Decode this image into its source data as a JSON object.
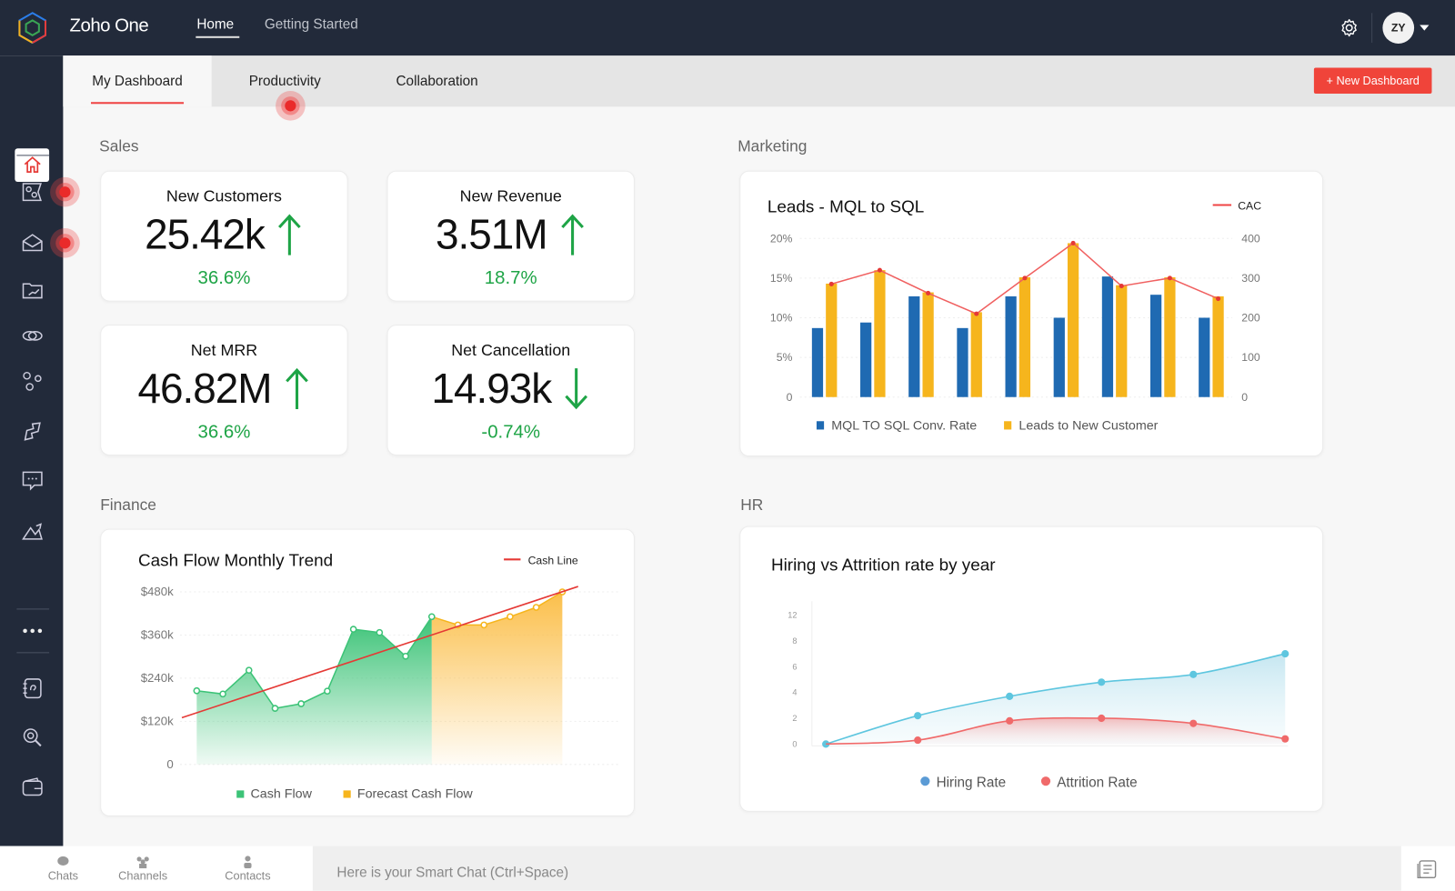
{
  "app": {
    "title": "Zoho One",
    "user_initials": "ZY"
  },
  "topnav": {
    "items": [
      {
        "label": "Home",
        "active": true
      },
      {
        "label": "Getting Started",
        "active": false
      }
    ]
  },
  "tabs": [
    {
      "label": "My Dashboard",
      "active": true
    },
    {
      "label": "Productivity"
    },
    {
      "label": "Collaboration"
    }
  ],
  "new_dashboard_label": "+ New Dashboard",
  "colors": {
    "accent": "#f0443a",
    "positive": "#1ea446",
    "navy": "#222a3a",
    "blue_bar": "#1f6ab2",
    "yellow_bar": "#f6b51d",
    "green_area": "#3cc377",
    "hiring": "#5ec6df",
    "attrition": "#f06a6a"
  },
  "sidebar": {
    "items": [
      "home-icon",
      "reports-icon",
      "mail-icon",
      "folder-chart-icon",
      "link-icon",
      "workflow-icon",
      "sign-icon",
      "chat-icon",
      "analytics-icon",
      "more-icon",
      "notebook-icon",
      "search-icon",
      "wallet-icon"
    ]
  },
  "sections": {
    "sales": "Sales",
    "marketing": "Marketing",
    "finance": "Finance",
    "hr": "HR"
  },
  "kpis": [
    {
      "title": "New Customers",
      "value": "25.42k",
      "change": "36.6%",
      "trend": "up"
    },
    {
      "title": "New Revenue",
      "value": "3.51M",
      "change": "18.7%",
      "trend": "up"
    },
    {
      "title": "Net MRR",
      "value": "46.82M",
      "change": "36.6%",
      "trend": "up"
    },
    {
      "title": "Net Cancellation",
      "value": "14.93k",
      "change": "-0.74%",
      "trend": "down"
    }
  ],
  "chart_data": [
    {
      "type": "bar",
      "title": "Leads - MQL to SQL",
      "y_left_ticks": [
        "0",
        "5%",
        "10%",
        "15%",
        "20%"
      ],
      "y_left_range": [
        0,
        20
      ],
      "y_right_ticks": [
        "0",
        "100",
        "200",
        "300",
        "400"
      ],
      "y_right_range": [
        0,
        400
      ],
      "grid": true,
      "legend": "bottom",
      "series": [
        {
          "name": "MQL TO SQL Conv. Rate",
          "axis": "left",
          "kind": "bar",
          "values": [
            8.7,
            9.4,
            12.7,
            8.7,
            12.7,
            10,
            15.2,
            12.9,
            10
          ]
        },
        {
          "name": "Leads to New Customer",
          "axis": "left",
          "kind": "bar",
          "values": [
            14.3,
            16,
            13.2,
            10.7,
            15.1,
            19.4,
            14.1,
            15.1,
            12.7
          ]
        },
        {
          "name": "CAC",
          "axis": "right",
          "kind": "line",
          "values": [
            285,
            320,
            262,
            210,
            300,
            388,
            280,
            300,
            248
          ]
        }
      ]
    },
    {
      "type": "area",
      "title": "Cash Flow Monthly Trend",
      "y_ticks": [
        "0",
        "$120k",
        "$240k",
        "$360k",
        "$480k"
      ],
      "y_range": [
        0,
        480
      ],
      "grid": true,
      "legend": "bottom",
      "series": [
        {
          "name": "Cash Flow",
          "values": [
            205,
            196,
            262,
            156,
            169,
            204,
            376,
            367,
            301,
            411
          ]
        },
        {
          "name": "Forecast Cash Flow",
          "values": [
            411,
            388,
            388,
            411,
            437,
            480
          ]
        },
        {
          "name": "Cash Line",
          "kind": "trend",
          "values": [
            130,
            495
          ]
        }
      ]
    },
    {
      "type": "area",
      "title": "Hiring vs Attrition rate by year",
      "y_ticks": [
        "0",
        "2",
        "4",
        "6",
        "8",
        "12"
      ],
      "y_range": [
        0,
        10
      ],
      "legend": "bottom",
      "series": [
        {
          "name": "Hiring Rate",
          "values": [
            0,
            2.2,
            3.7,
            4.8,
            5.4,
            7.0
          ]
        },
        {
          "name": "Attrition Rate",
          "values": [
            0,
            0.3,
            1.8,
            2.0,
            1.6,
            0.4
          ]
        }
      ]
    }
  ],
  "bottombar": {
    "items": [
      "Chats",
      "Channels",
      "Contacts"
    ],
    "smart_chat": "Here is your Smart Chat (Ctrl+Space)"
  }
}
